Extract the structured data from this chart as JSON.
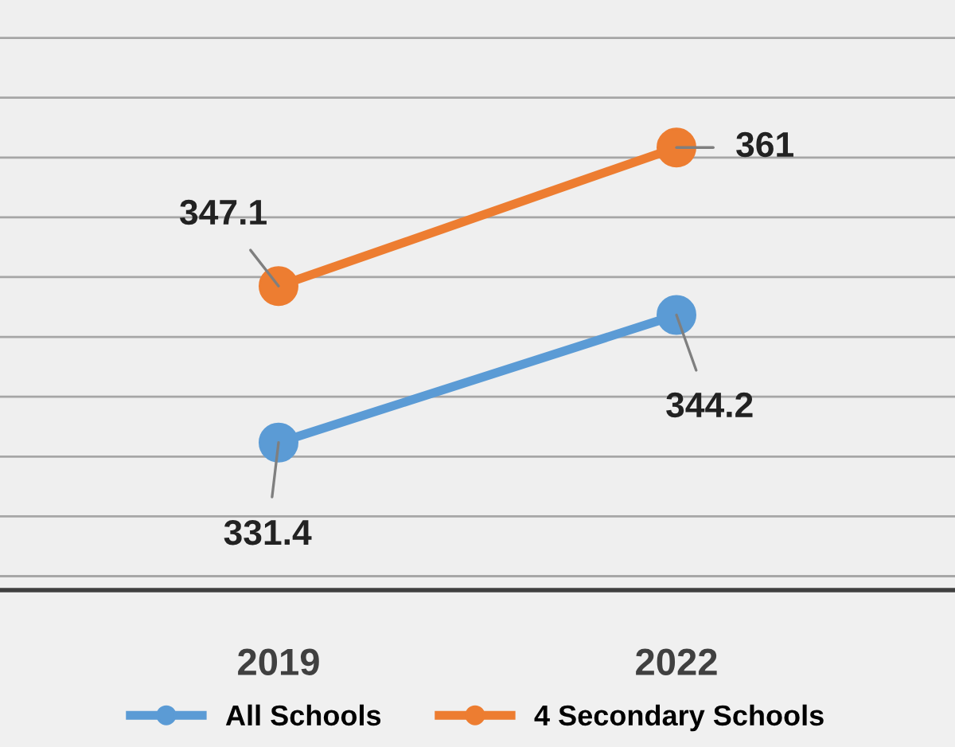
{
  "chart_data": {
    "type": "line",
    "categories": [
      "2019",
      "2022"
    ],
    "series": [
      {
        "name": "All Schools",
        "color": "#5b9bd5",
        "values": [
          331.4,
          344.2
        ]
      },
      {
        "name": "4 Secondary Schools",
        "color": "#ed7d31",
        "values": [
          347.1,
          361
        ]
      }
    ],
    "tick_labels": "x",
    "grid": "y",
    "legend": "bottom",
    "marker": "circle",
    "line_style": "solid",
    "data_labels": true
  }
}
